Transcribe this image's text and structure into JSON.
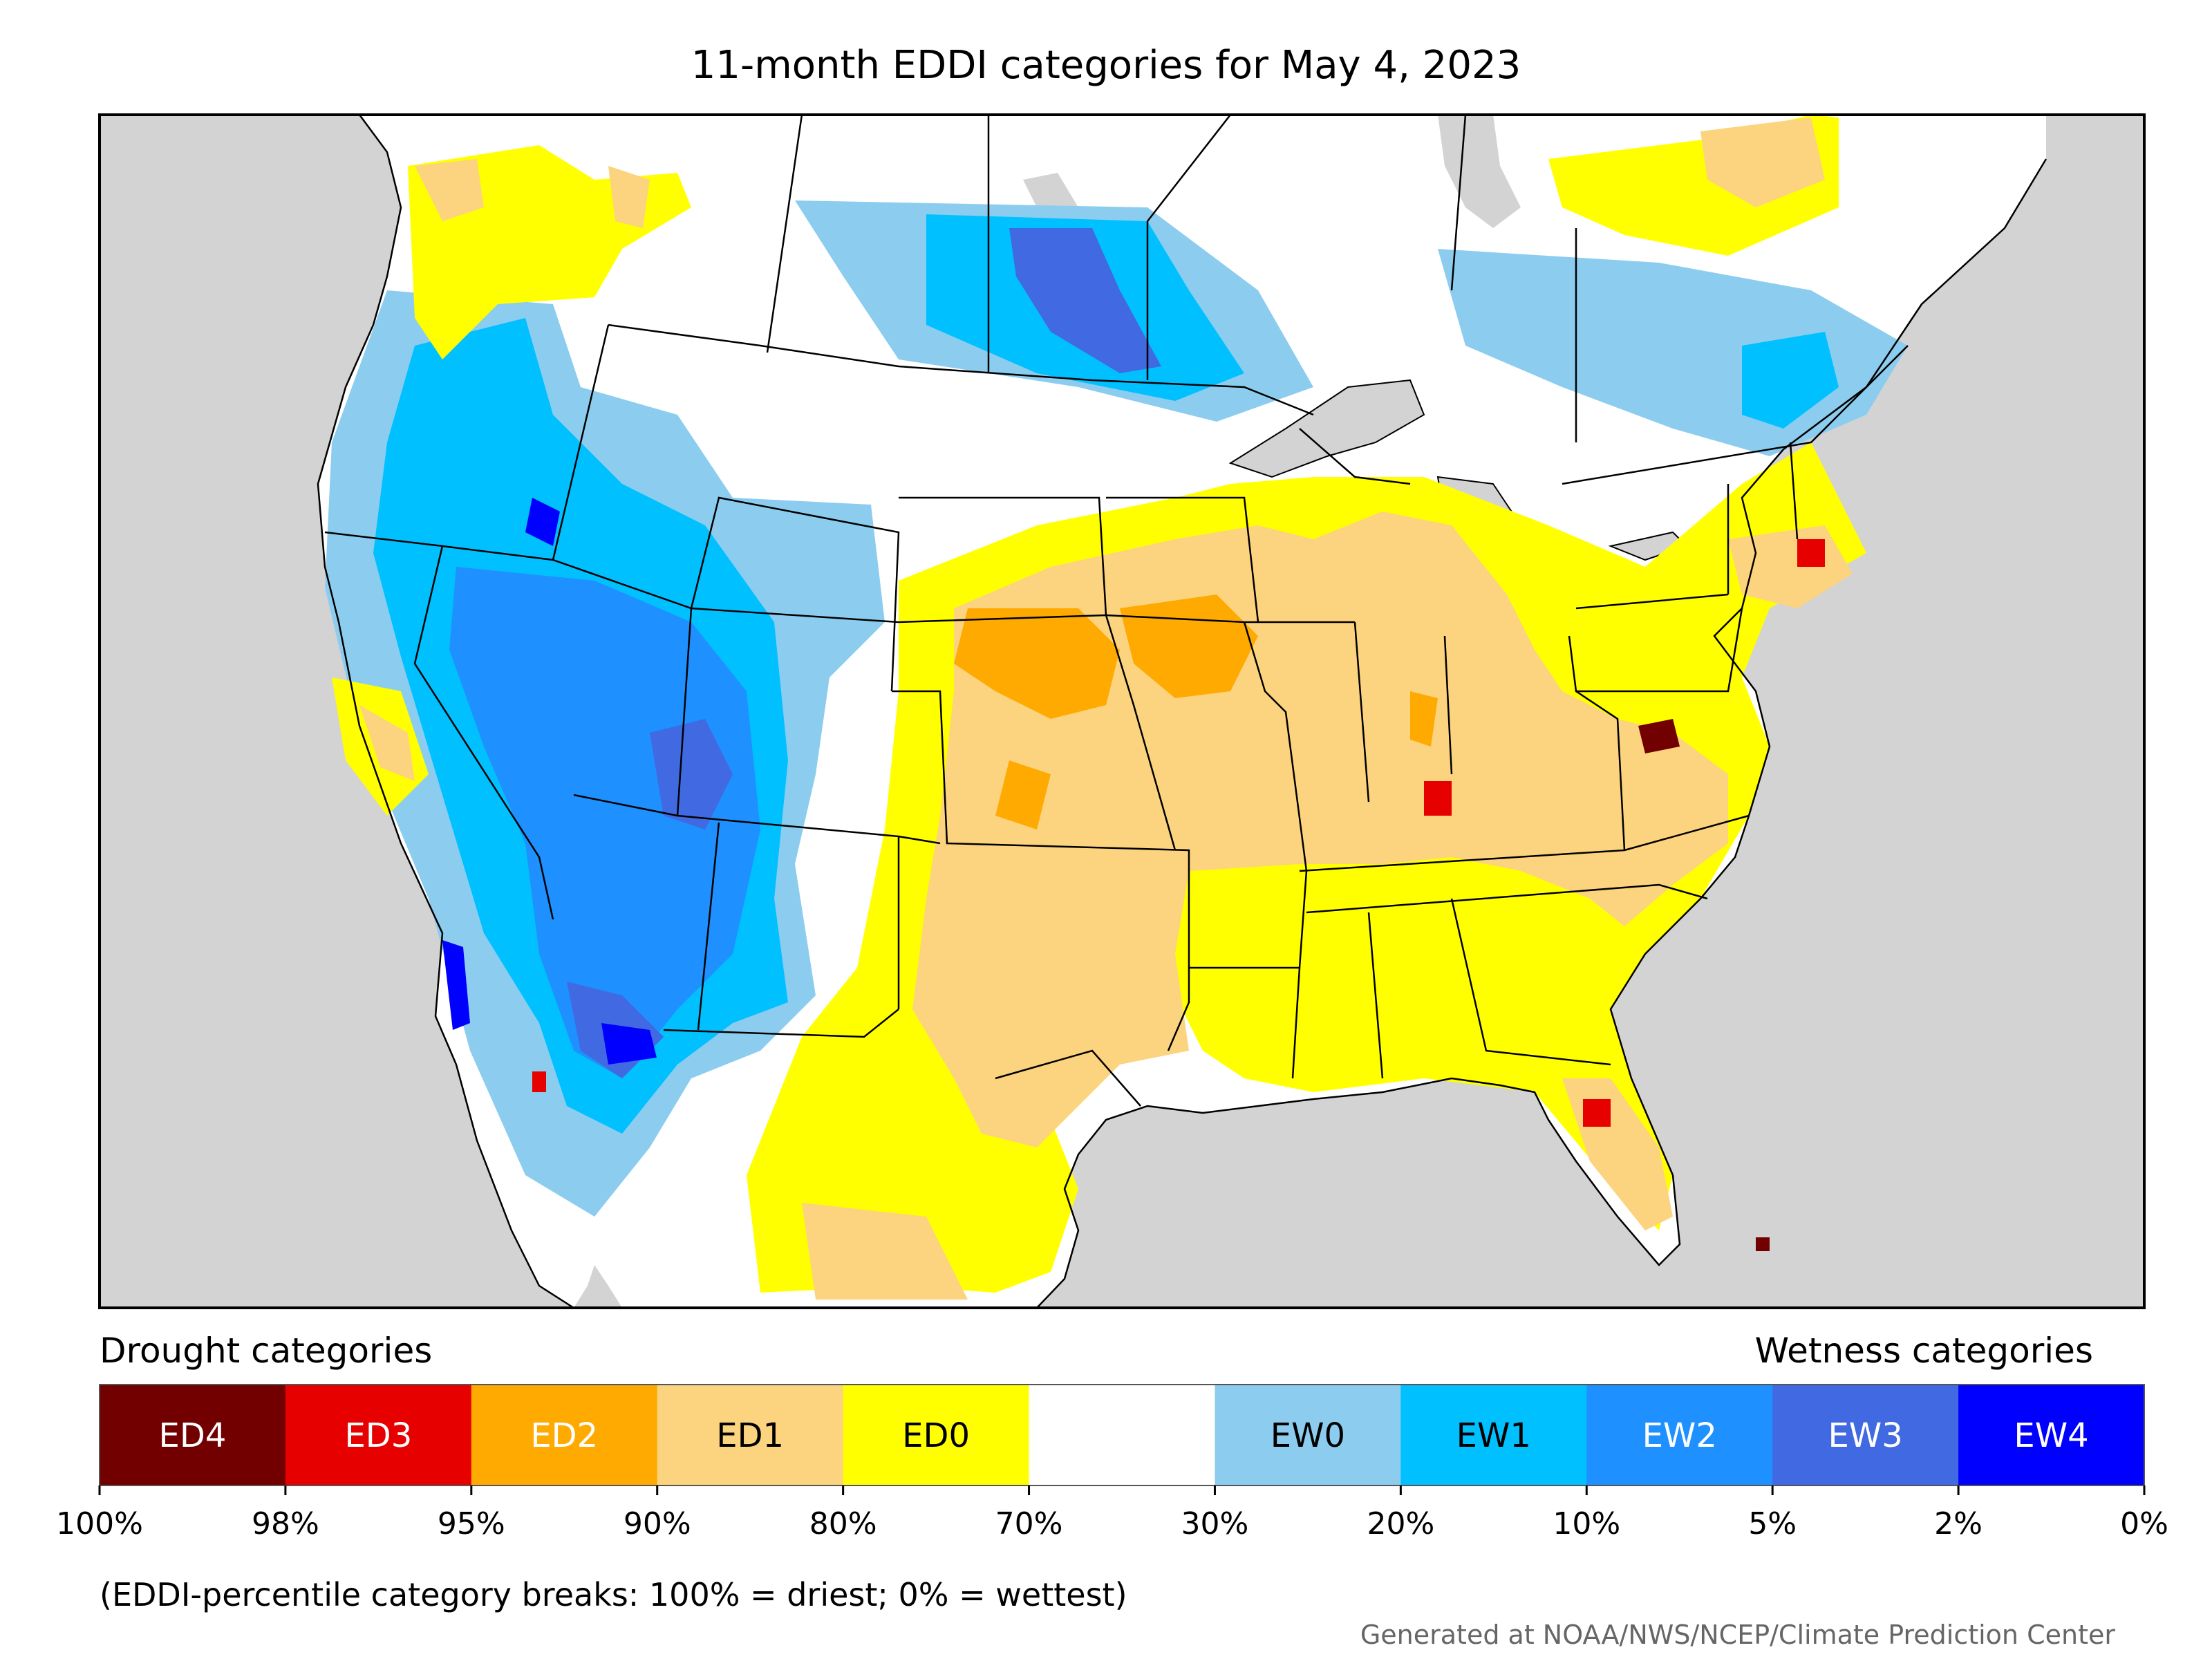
{
  "title": "11-month EDDI categories for May 4, 2023",
  "legend": {
    "left_caption": "Drought categories",
    "right_caption": "Wetness categories",
    "categories": [
      {
        "label": "ED4",
        "color": "#730000",
        "text_color": "#ffffff"
      },
      {
        "label": "ED3",
        "color": "#e60000",
        "text_color": "#ffffff"
      },
      {
        "label": "ED2",
        "color": "#ffaa00",
        "text_color": "#ffffff"
      },
      {
        "label": "ED1",
        "color": "#fcd37f",
        "text_color": "#000000"
      },
      {
        "label": "ED0",
        "color": "#ffff00",
        "text_color": "#000000"
      },
      {
        "label": "",
        "color": "#ffffff",
        "text_color": "#000000"
      },
      {
        "label": "EW0",
        "color": "#8ccdef",
        "text_color": "#000000"
      },
      {
        "label": "EW1",
        "color": "#00c0ff",
        "text_color": "#000000"
      },
      {
        "label": "EW2",
        "color": "#1e90ff",
        "text_color": "#ffffff"
      },
      {
        "label": "EW3",
        "color": "#4169e1",
        "text_color": "#ffffff"
      },
      {
        "label": "EW4",
        "color": "#0000ff",
        "text_color": "#ffffff"
      }
    ],
    "ticks": [
      "100%",
      "98%",
      "95%",
      "90%",
      "80%",
      "70%",
      "30%",
      "20%",
      "10%",
      "5%",
      "2%",
      "0%"
    ]
  },
  "note": "(EDDI-percentile category breaks: 100% = driest; 0% = wettest)",
  "credit": "Generated at NOAA/NWS/NCEP/Climate Prediction Center",
  "map": {
    "ocean_color": "#d3d3d3",
    "land_color": "#ffffff",
    "border_color": "#000000"
  }
}
